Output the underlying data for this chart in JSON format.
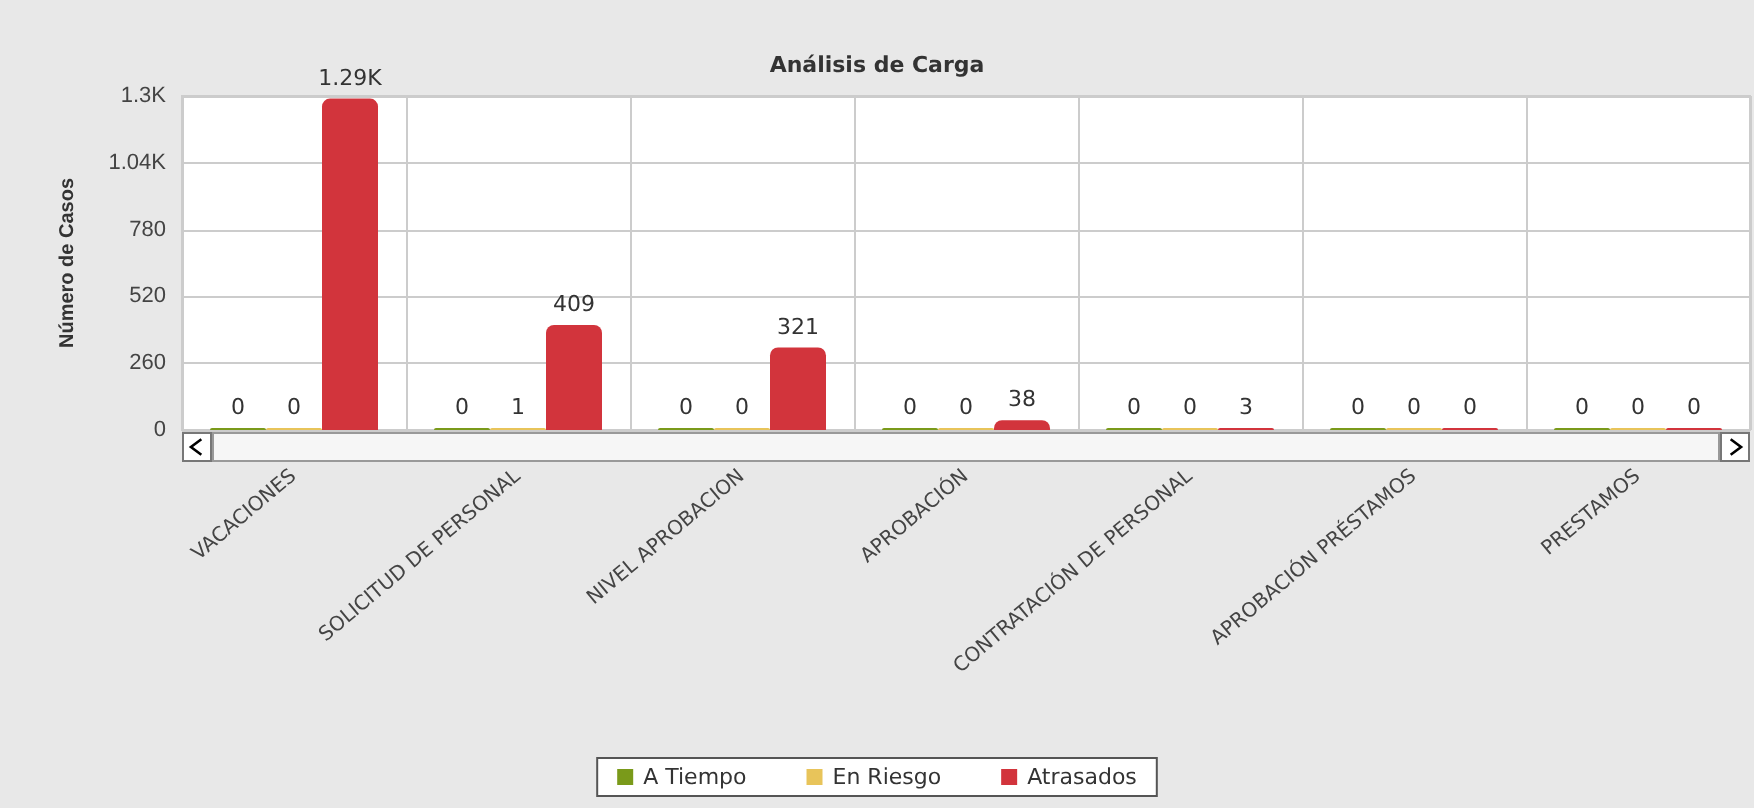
{
  "chart_data": {
    "type": "bar",
    "title": "Análisis de Carga",
    "ylabel": "Número de Casos",
    "categories": [
      "VACACIONES",
      "SOLICITUD DE PERSONAL",
      "NIVEL APROBACION",
      "APROBACIÓN",
      "CONTRATACIÓN DE PERSONAL",
      "APROBACIÓN PRÉSTAMOS",
      "PRESTAMOS"
    ],
    "series": [
      {
        "name": "A Tiempo",
        "color": "#7a9a1a",
        "values": [
          0,
          0,
          0,
          0,
          0,
          0,
          0
        ],
        "value_labels": [
          "0",
          "0",
          "0",
          "0",
          "0",
          "0",
          "0"
        ]
      },
      {
        "name": "En Riesgo",
        "color": "#e8c45a",
        "values": [
          0,
          1,
          0,
          0,
          0,
          0,
          0
        ],
        "value_labels": [
          "0",
          "1",
          "0",
          "0",
          "0",
          "0",
          "0"
        ]
      },
      {
        "name": "Atrasados",
        "color": "#d2343c",
        "values": [
          1290,
          409,
          321,
          38,
          3,
          0,
          0
        ],
        "value_labels": [
          "1.29K",
          "409",
          "321",
          "38",
          "3",
          "0",
          "0"
        ]
      }
    ],
    "ylim": [
      0,
      1300
    ],
    "yticks": [
      0,
      260,
      520,
      780,
      {
        "value": 1040,
        "label": "1.04K"
      },
      {
        "value": 1300,
        "label": "1.3K"
      }
    ],
    "grid": true,
    "legend": "bottom"
  }
}
